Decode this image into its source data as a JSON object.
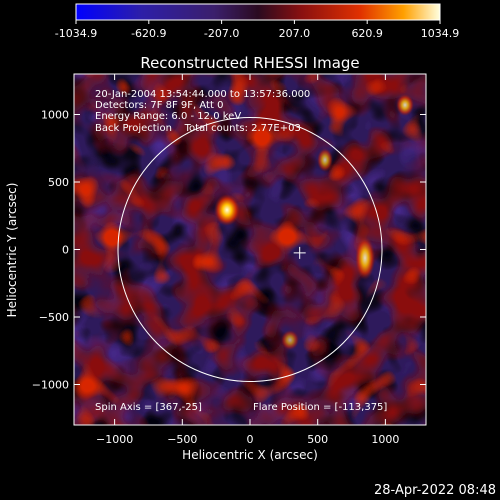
{
  "colorbar": {
    "tick_labels": [
      "-1034.9",
      "-620.9",
      "-207.0",
      "207.0",
      "620.9",
      "1034.9"
    ],
    "range": [
      -1034.9,
      1034.9
    ],
    "colors": [
      "#0000ff",
      "#3b1f8c",
      "#000000",
      "#6a1010",
      "#e03000",
      "#ffa000",
      "#ffff80"
    ]
  },
  "image": {
    "title": "Reconstructed RHESSI Image",
    "info_lines": [
      "20-Jan-2004 13:54:44.000 to 13:57:36.000",
      "Detectors: 7F 8F 9F, Att 0",
      "Energy Range: 6.0 - 12.0 keV",
      "Back Projection    Total counts: 2.77E+03"
    ],
    "spin_axis": "Spin Axis = [367,-25]",
    "flare_position": "Flare Position = [-113,375]",
    "xlabel": "Heliocentric X (arcsec)",
    "ylabel": "Heliocentric Y (arcsec)",
    "x_range": [
      -1300,
      1300
    ],
    "y_range": [
      -1300,
      1300
    ],
    "x_ticks": [
      -1000,
      -500,
      0,
      500,
      1000
    ],
    "y_ticks": [
      -1000,
      -500,
      0,
      500,
      1000
    ],
    "solar_disk_radius": 975,
    "spin_axis_marker": [
      367,
      -25
    ],
    "bright_spot": [
      -113,
      375
    ]
  },
  "timestamp": "28-Apr-2022 08:48"
}
